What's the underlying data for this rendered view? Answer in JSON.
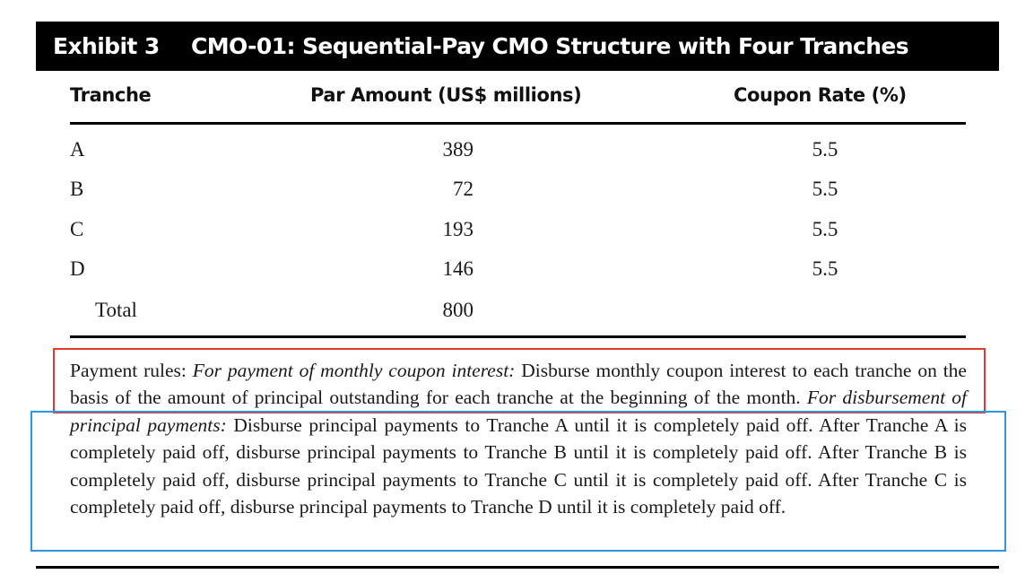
{
  "exhibit": {
    "label": "Exhibit 3",
    "title": "CMO-01: Sequential-Pay CMO Structure with Four Tranches"
  },
  "table": {
    "headers": {
      "tranche": "Tranche",
      "par_amount": "Par Amount (US$ millions)",
      "coupon_rate": "Coupon Rate (%)"
    },
    "rows": [
      {
        "tranche": "A",
        "par_amount": "389",
        "coupon_rate": "5.5"
      },
      {
        "tranche": "B",
        "par_amount": "72",
        "coupon_rate": "5.5"
      },
      {
        "tranche": "C",
        "par_amount": "193",
        "coupon_rate": "5.5"
      },
      {
        "tranche": "D",
        "par_amount": "146",
        "coupon_rate": "5.5"
      }
    ],
    "total": {
      "label": "Total",
      "par_amount": "800"
    }
  },
  "payment_rules": {
    "intro": "Payment rules: ",
    "coupon_heading": "For payment of monthly coupon interest:",
    "coupon_text": " Disburse monthly coupon interest to each tranche on the basis of the amount of principal outstanding for each tranche at the beginning of the month. ",
    "principal_heading": "For disbursement of principal payments:",
    "principal_text": " Disburse principal payments to Tranche A until it is completely paid off. After Tranche A is completely paid off, disburse principal payments to Tranche B until it is completely paid off. After Tranche B is completely paid off, disburse principal payments to Tranche C until it is completely paid off. After Tranche C is completely paid off, disburse principal payments to Tranche D until it is completely paid off."
  },
  "highlight_colors": {
    "coupon_rule_box": "#e03a2f",
    "principal_rule_box": "#2f95e0"
  }
}
